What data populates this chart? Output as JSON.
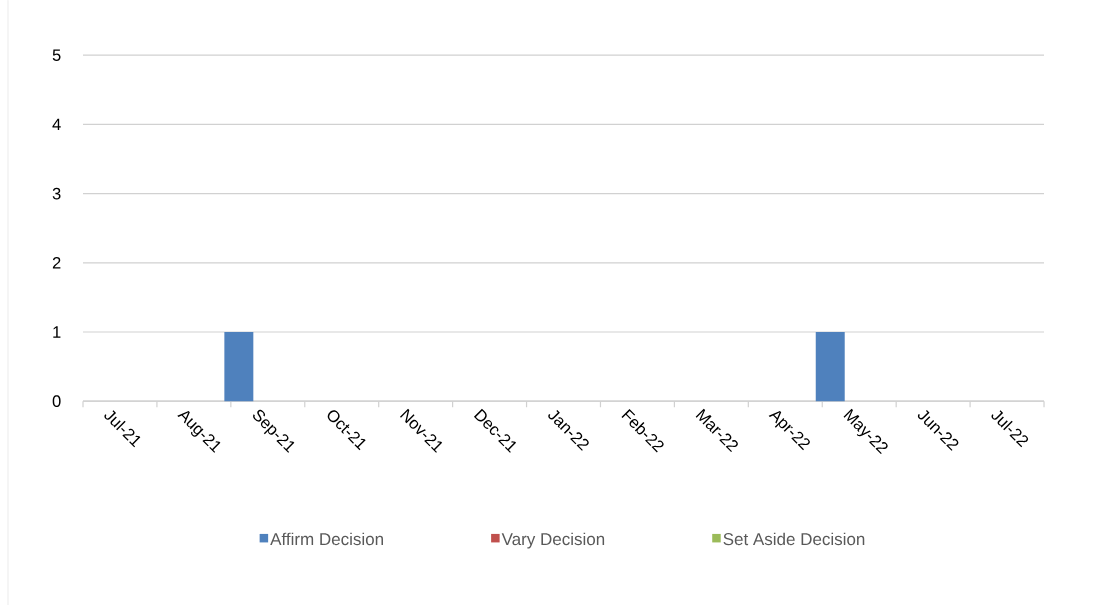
{
  "chart_data": {
    "type": "bar",
    "categories": [
      "Jul-21",
      "Aug-21",
      "Sep-21",
      "Oct-21",
      "Nov-21",
      "Dec-21",
      "Jan-22",
      "Feb-22",
      "Mar-22",
      "Apr-22",
      "May-22",
      "Jun-22",
      "Jul-22"
    ],
    "series": [
      {
        "name": "Affirm Decision",
        "color": "#4f81bd",
        "values": [
          0,
          0,
          1,
          0,
          0,
          0,
          0,
          0,
          0,
          0,
          1,
          0,
          0
        ]
      },
      {
        "name": "Vary Decision",
        "color": "#c0504d",
        "values": [
          0,
          0,
          0,
          0,
          0,
          0,
          0,
          0,
          0,
          0,
          0,
          0,
          0
        ]
      },
      {
        "name": "Set Aside Decision",
        "color": "#9bbb59",
        "values": [
          0,
          0,
          0,
          0,
          0,
          0,
          0,
          0,
          0,
          0,
          0,
          0,
          0
        ]
      }
    ],
    "ylim": [
      0,
      5
    ],
    "yticks": [
      0,
      1,
      2,
      3,
      4,
      5
    ],
    "grid": "y",
    "legend": "bottom"
  }
}
